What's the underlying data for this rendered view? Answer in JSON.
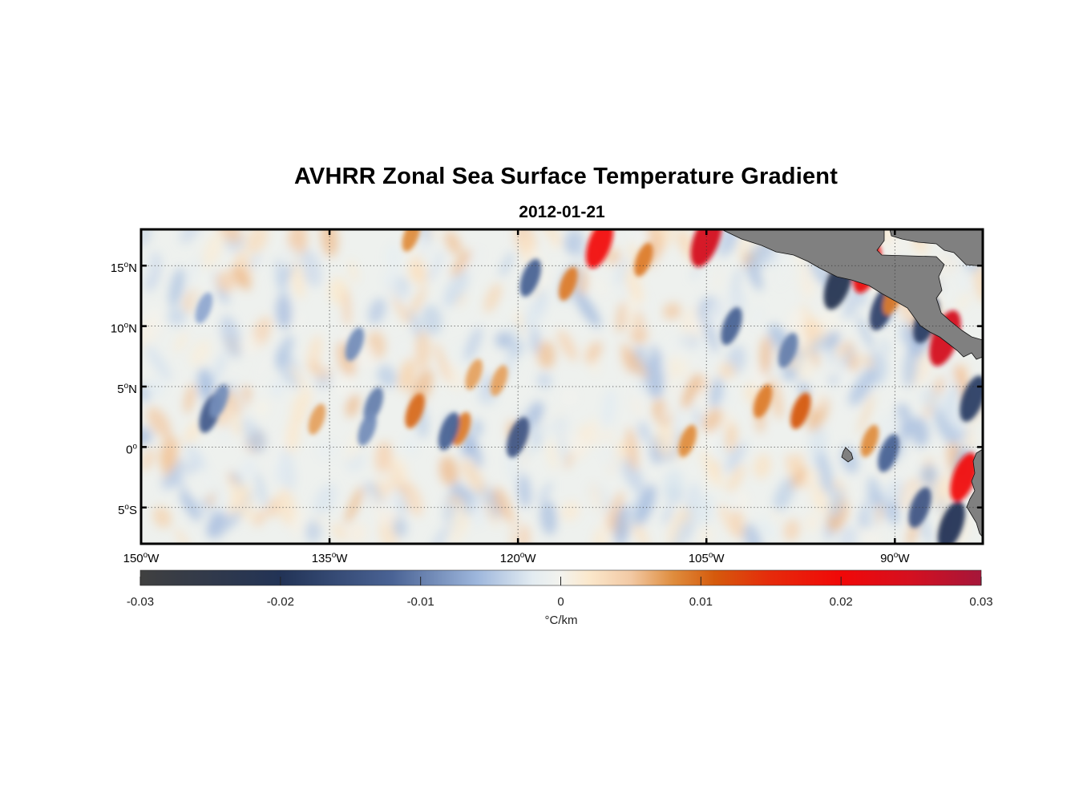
{
  "title": "AVHRR Zonal Sea Surface Temperature Gradient",
  "subtitle": "2012-01-21",
  "map": {
    "type": "heatmap",
    "lon_range": [
      -150,
      -83
    ],
    "lat_range": [
      -8,
      18
    ],
    "grid": true,
    "grid_style": "dotted",
    "land_color": "#808080",
    "x_ticks": [
      {
        "deg": "150",
        "hemi": "W",
        "lon": -150
      },
      {
        "deg": "135",
        "hemi": "W",
        "lon": -135
      },
      {
        "deg": "120",
        "hemi": "W",
        "lon": -120
      },
      {
        "deg": "105",
        "hemi": "W",
        "lon": -105
      },
      {
        "deg": "90",
        "hemi": "W",
        "lon": -90
      }
    ],
    "y_ticks": [
      {
        "deg": "15",
        "hemi": "N",
        "lat": 15
      },
      {
        "deg": "10",
        "hemi": "N",
        "lat": 10
      },
      {
        "deg": "5",
        "hemi": "N",
        "lat": 5
      },
      {
        "deg": "0",
        "hemi": "",
        "lat": 0
      },
      {
        "deg": "5",
        "hemi": "S",
        "lat": -5
      }
    ]
  },
  "chart_data": {
    "type": "heatmap",
    "variable": "zonal SST gradient",
    "units": "°C/km",
    "date": "2012-01-21",
    "xlim": [
      -150,
      -83
    ],
    "ylim": [
      -8,
      18
    ],
    "features": [
      {
        "lon": -119.0,
        "lat": 14.0,
        "value": -0.012
      },
      {
        "lon": -116.0,
        "lat": 13.5,
        "value": 0.009
      },
      {
        "lon": -113.5,
        "lat": 16.8,
        "value": 0.02
      },
      {
        "lon": -110.0,
        "lat": 15.5,
        "value": 0.009
      },
      {
        "lon": -105.0,
        "lat": 17.2,
        "value": 0.025
      },
      {
        "lon": -94.5,
        "lat": 13.5,
        "value": -0.022
      },
      {
        "lon": -92.2,
        "lat": 14.8,
        "value": 0.021
      },
      {
        "lon": -91.0,
        "lat": 11.5,
        "value": -0.017
      },
      {
        "lon": -90.2,
        "lat": 12.3,
        "value": 0.009
      },
      {
        "lon": -87.5,
        "lat": 10.5,
        "value": -0.018
      },
      {
        "lon": -86.0,
        "lat": 9.0,
        "value": 0.025
      },
      {
        "lon": -83.8,
        "lat": 4.0,
        "value": -0.018
      },
      {
        "lon": -84.5,
        "lat": -2.5,
        "value": 0.02
      },
      {
        "lon": -85.5,
        "lat": -6.5,
        "value": -0.02
      },
      {
        "lon": -88.0,
        "lat": -5.0,
        "value": -0.014
      },
      {
        "lon": -92.0,
        "lat": 0.5,
        "value": 0.008
      },
      {
        "lon": -90.5,
        "lat": -0.5,
        "value": -0.012
      },
      {
        "lon": -97.5,
        "lat": 3.0,
        "value": 0.011
      },
      {
        "lon": -100.5,
        "lat": 3.8,
        "value": 0.009
      },
      {
        "lon": -103.0,
        "lat": 10.0,
        "value": -0.012
      },
      {
        "lon": -98.5,
        "lat": 8.0,
        "value": -0.01
      },
      {
        "lon": -106.5,
        "lat": 0.5,
        "value": 0.008
      },
      {
        "lon": -120.0,
        "lat": 0.8,
        "value": -0.014
      },
      {
        "lon": -124.5,
        "lat": 1.5,
        "value": 0.009
      },
      {
        "lon": -128.2,
        "lat": 3.0,
        "value": 0.01
      },
      {
        "lon": -125.5,
        "lat": 1.3,
        "value": -0.012
      },
      {
        "lon": -131.5,
        "lat": 3.5,
        "value": -0.01
      },
      {
        "lon": -132.0,
        "lat": 1.5,
        "value": -0.009
      },
      {
        "lon": -144.5,
        "lat": 2.8,
        "value": -0.013
      },
      {
        "lon": -143.8,
        "lat": 3.8,
        "value": -0.009
      },
      {
        "lon": -136.0,
        "lat": 2.3,
        "value": 0.007
      },
      {
        "lon": -133.0,
        "lat": 8.5,
        "value": -0.009
      },
      {
        "lon": -145.0,
        "lat": 11.5,
        "value": -0.007
      },
      {
        "lon": -128.5,
        "lat": 17.5,
        "value": 0.008
      },
      {
        "lon": -123.5,
        "lat": 6.0,
        "value": 0.007
      },
      {
        "lon": -121.5,
        "lat": 5.5,
        "value": 0.007
      }
    ],
    "colorbar": {
      "label": "°C/km",
      "range": [
        -0.03,
        0.03
      ],
      "ticks": [
        -0.03,
        -0.02,
        -0.01,
        0,
        0.01,
        0.02,
        0.03
      ],
      "tick_labels": [
        "-0.03",
        "-0.02",
        "-0.01",
        "0",
        "0.01",
        "0.02",
        "0.03"
      ],
      "colors": [
        {
          "value": -0.03,
          "color": "#404040"
        },
        {
          "value": -0.02,
          "color": "#223356"
        },
        {
          "value": -0.012,
          "color": "#4a6395"
        },
        {
          "value": -0.006,
          "color": "#9db6dc"
        },
        {
          "value": -0.002,
          "color": "#e3ecf1"
        },
        {
          "value": 0.0,
          "color": "#f3f3ee"
        },
        {
          "value": 0.002,
          "color": "#fbe8cc"
        },
        {
          "value": 0.005,
          "color": "#f2c9a4"
        },
        {
          "value": 0.008,
          "color": "#df8d3e"
        },
        {
          "value": 0.011,
          "color": "#d55a0c"
        },
        {
          "value": 0.015,
          "color": "#e62a0b"
        },
        {
          "value": 0.02,
          "color": "#f10808"
        },
        {
          "value": 0.025,
          "color": "#d41020"
        },
        {
          "value": 0.03,
          "color": "#a5163a"
        }
      ]
    }
  }
}
